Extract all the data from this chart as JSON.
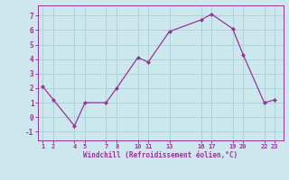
{
  "x": [
    1,
    2,
    4,
    5,
    7,
    8,
    10,
    11,
    13,
    16,
    17,
    19,
    20,
    22,
    23
  ],
  "y": [
    2.1,
    1.2,
    -0.6,
    1.0,
    1.0,
    2.0,
    4.1,
    3.8,
    5.9,
    6.7,
    7.1,
    6.1,
    4.3,
    1.0,
    1.2
  ],
  "line_color": "#993399",
  "marker_color": "#993399",
  "background_color": "#cce8ec",
  "grid_color": "#aad0d8",
  "xlabel": "Windchill (Refroidissement éolien,°C)",
  "xlabel_color": "#993399",
  "tick_color": "#993399",
  "xticks": [
    1,
    2,
    4,
    5,
    7,
    8,
    10,
    11,
    13,
    16,
    17,
    19,
    20,
    22,
    23
  ],
  "xtick_labels": [
    "1",
    "2",
    "4",
    "5",
    "7",
    "8",
    "10",
    "11",
    "13",
    "16",
    "17",
    "19",
    "20",
    "22",
    "23"
  ],
  "yticks": [
    -1,
    0,
    1,
    2,
    3,
    4,
    5,
    6,
    7
  ],
  "xlim": [
    0.5,
    23.8
  ],
  "ylim": [
    -1.6,
    7.7
  ]
}
